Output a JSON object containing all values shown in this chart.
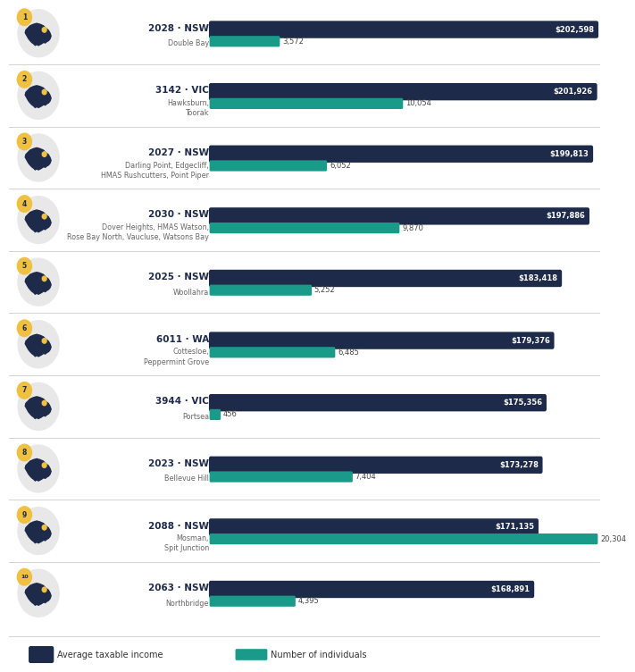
{
  "entries": [
    {
      "rank": 1,
      "postcode": "2028",
      "state": "NSW",
      "suburb": "Double Bay",
      "avg_income": 202598,
      "num_individuals": 3572
    },
    {
      "rank": 2,
      "postcode": "3142",
      "state": "VIC",
      "suburb": "Hawksburn,\nToorak",
      "avg_income": 201926,
      "num_individuals": 10054
    },
    {
      "rank": 3,
      "postcode": "2027",
      "state": "NSW",
      "suburb": "Darling Point, Edgecliff,\nHMAS Rushcutters, Point Piper",
      "avg_income": 199813,
      "num_individuals": 6052
    },
    {
      "rank": 4,
      "postcode": "2030",
      "state": "NSW",
      "suburb": "Dover Heights, HMAS Watson,\nRose Bay North, Vaucluse, Watsons Bay",
      "avg_income": 197886,
      "num_individuals": 9870
    },
    {
      "rank": 5,
      "postcode": "2025",
      "state": "NSW",
      "suburb": "Woollahra",
      "avg_income": 183418,
      "num_individuals": 5252
    },
    {
      "rank": 6,
      "postcode": "6011",
      "state": "WA",
      "suburb": "Cottesloe,\nPeppermint Grove",
      "avg_income": 179376,
      "num_individuals": 6485
    },
    {
      "rank": 7,
      "postcode": "3944",
      "state": "VIC",
      "suburb": "Portsea",
      "avg_income": 175356,
      "num_individuals": 456
    },
    {
      "rank": 8,
      "postcode": "2023",
      "state": "NSW",
      "suburb": "Bellevue Hill",
      "avg_income": 173278,
      "num_individuals": 7404
    },
    {
      "rank": 9,
      "postcode": "2088",
      "state": "NSW",
      "suburb": "Mosman,\nSpit Junction",
      "avg_income": 171135,
      "num_individuals": 20304
    },
    {
      "rank": 10,
      "postcode": "2063",
      "state": "NSW",
      "suburb": "Northbridge",
      "avg_income": 168891,
      "num_individuals": 4395
    }
  ],
  "max_income": 202598,
  "max_individuals": 20304,
  "bar_color_income": "#1e2a4a",
  "bar_color_individuals": "#1a9b8a",
  "background_color": "#ffffff",
  "rank_bg_color": "#f0c040",
  "rank_text_color": "#1e2a4a",
  "separator_color": "#cccccc",
  "label_color": "#666666",
  "postcode_color": "#1e2a4a",
  "map_circle_color": "#e8e8e8",
  "map_color": "#1e2a4a",
  "map_highlight_color": "#f0c040",
  "legend_income_label": "Average taxable income",
  "legend_indiv_label": "Number of individuals"
}
